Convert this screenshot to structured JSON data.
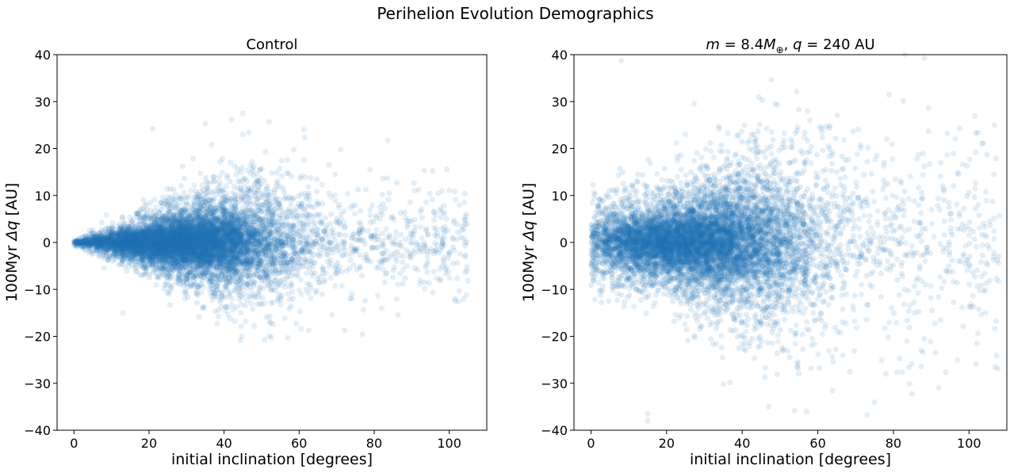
{
  "figure": {
    "title": "Perihelion Evolution Demographics"
  },
  "chart_data": [
    {
      "type": "scatter",
      "title": "Control",
      "title_html": "Control",
      "xlabel": "initial inclination [degrees]",
      "ylabel": "100Myr Δq [AU]",
      "xlim": [
        -4.5,
        110
      ],
      "ylim": [
        -40,
        40
      ],
      "xticks": [
        0,
        20,
        40,
        60,
        80,
        100
      ],
      "yticks": [
        -40,
        -30,
        -20,
        -10,
        0,
        10,
        20,
        30,
        40
      ],
      "xtick_labels": [
        "0",
        "20",
        "40",
        "60",
        "80",
        "100"
      ],
      "ytick_labels": [
        "−40",
        "−30",
        "−20",
        "−10",
        "0",
        "10",
        "20",
        "30",
        "40"
      ],
      "point_color": "#1f77b4",
      "point_alpha": 0.12,
      "grid": false,
      "n_points": 9000,
      "distribution": {
        "inclination_mode": 30,
        "inclination_spread": 14,
        "inclination_max": 105,
        "dq_spread_near_zero": 0.3,
        "dq_spread_growth_per_degree": 0.13,
        "dq_spread_cap": 7,
        "dq_range": [
          -21,
          28
        ]
      },
      "notable_points": [
        {
          "x": 105,
          "y": -8.2
        },
        {
          "x": 100,
          "y": 11.1
        },
        {
          "x": 97,
          "y": 10.5
        },
        {
          "x": 82,
          "y": -14.0
        },
        {
          "x": 13,
          "y": -15.0
        },
        {
          "x": 8,
          "y": -5.5
        },
        {
          "x": 45,
          "y": 27.5
        },
        {
          "x": 42,
          "y": 26.2
        },
        {
          "x": 57,
          "y": -20.3
        },
        {
          "x": 35,
          "y": 25.3
        },
        {
          "x": 21,
          "y": 24.2
        },
        {
          "x": 52,
          "y": 25.7
        }
      ]
    },
    {
      "type": "scatter",
      "title": "m = 8.4M⊕, q = 240 AU",
      "title_html": "<tspan font-style='italic'>m</tspan> = 8.4<tspan font-style='italic'>M</tspan><tspan font-size='12' dy='5'>⊕</tspan><tspan dy='-5'>, </tspan><tspan font-style='italic'>q</tspan> = 240 AU",
      "xlabel": "initial inclination [degrees]",
      "ylabel": "100Myr Δq [AU]",
      "xlim": [
        -4.5,
        110
      ],
      "ylim": [
        -40,
        40
      ],
      "xticks": [
        0,
        20,
        40,
        60,
        80,
        100
      ],
      "yticks": [
        -40,
        -30,
        -20,
        -10,
        0,
        10,
        20,
        30,
        40
      ],
      "xtick_labels": [
        "0",
        "20",
        "40",
        "60",
        "80",
        "100"
      ],
      "ytick_labels": [
        "−40",
        "−30",
        "−20",
        "−10",
        "0",
        "10",
        "20",
        "30",
        "40"
      ],
      "point_color": "#1f77b4",
      "point_alpha": 0.12,
      "grid": false,
      "n_points": 9000,
      "distribution": {
        "inclination_mode": 28,
        "inclination_spread": 16,
        "inclination_max": 108,
        "dq_spread_low_inclination": 5,
        "dq_spread_high_inclination": 14,
        "dq_range": [
          -40,
          40
        ]
      },
      "notable_points": [
        {
          "x": 108,
          "y": 5.7
        },
        {
          "x": 94,
          "y": -6.0
        },
        {
          "x": 93,
          "y": 12.0
        },
        {
          "x": 15,
          "y": -36.5
        },
        {
          "x": 15,
          "y": -38.0
        },
        {
          "x": 8,
          "y": 38.7
        },
        {
          "x": 47,
          "y": -35.0
        },
        {
          "x": 57,
          "y": -36.0
        },
        {
          "x": 75,
          "y": -34.0
        },
        {
          "x": 78,
          "y": -28.0
        },
        {
          "x": 83,
          "y": 40.0
        },
        {
          "x": 1,
          "y": -5.0
        }
      ]
    }
  ]
}
